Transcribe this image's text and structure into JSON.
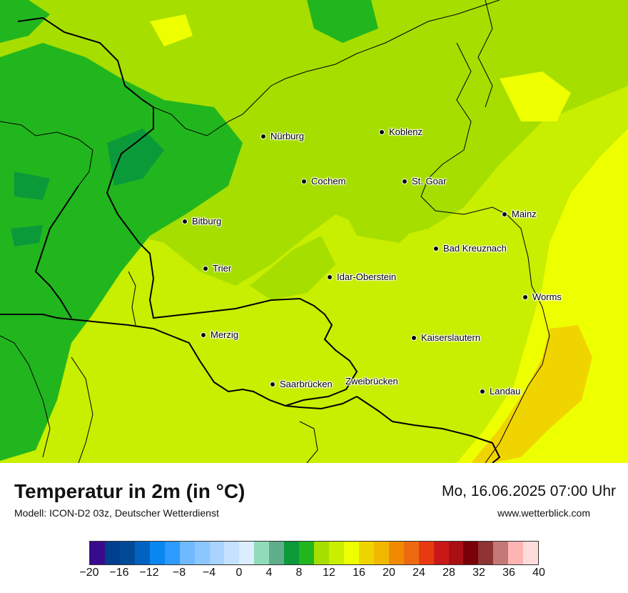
{
  "map": {
    "cities": [
      {
        "name": "Nürburg",
        "dot": true
      },
      {
        "name": "Koblenz",
        "dot": true
      },
      {
        "name": "Cochem",
        "dot": true
      },
      {
        "name": "St. Goar",
        "dot": true
      },
      {
        "name": "Bitburg",
        "dot": true
      },
      {
        "name": "Mainz",
        "dot": true
      },
      {
        "name": "Bad Kreuznach",
        "dot": true
      },
      {
        "name": "Trier",
        "dot": true
      },
      {
        "name": "Idar-Oberstein",
        "dot": true
      },
      {
        "name": "Worms",
        "dot": true
      },
      {
        "name": "Merzig",
        "dot": true
      },
      {
        "name": "Kaiserslautern",
        "dot": true
      },
      {
        "name": "Saarbrücken",
        "dot": true
      },
      {
        "name": "Zweibrücken",
        "dot": false
      },
      {
        "name": "Landau",
        "dot": true
      }
    ]
  },
  "footer": {
    "title": "Temperatur in 2m (in °C)",
    "model": "Modell: ICON-D2 03z, Deutscher Wetterdienst",
    "datetime": "Mo, 16.06.2025 07:00 Uhr",
    "website": "www.wetterblick.com"
  },
  "legend": {
    "colors": [
      "#3a0a8c",
      "#003f8f",
      "#004a98",
      "#0063c1",
      "#0a86f0",
      "#2b9bff",
      "#70b9ff",
      "#8cc6ff",
      "#a8d4ff",
      "#c4e2ff",
      "#dcedff",
      "#90dcb8",
      "#5eae8a",
      "#0a9a3a",
      "#22b61e",
      "#a6de00",
      "#c8ee00",
      "#eeff00",
      "#f0d400",
      "#f2b800",
      "#f08a00",
      "#ee6a10",
      "#e83a10",
      "#c81818",
      "#a80f14",
      "#7a0008",
      "#8e3232",
      "#c47878",
      "#ffb4b4",
      "#ffdcdc"
    ],
    "tick_labels": [
      "−20",
      "−16",
      "−12",
      "−8",
      "−4",
      "0",
      "4",
      "8",
      "12",
      "16",
      "20",
      "24",
      "28",
      "32",
      "36",
      "40"
    ],
    "min": -20,
    "max": 40,
    "step": 2
  }
}
